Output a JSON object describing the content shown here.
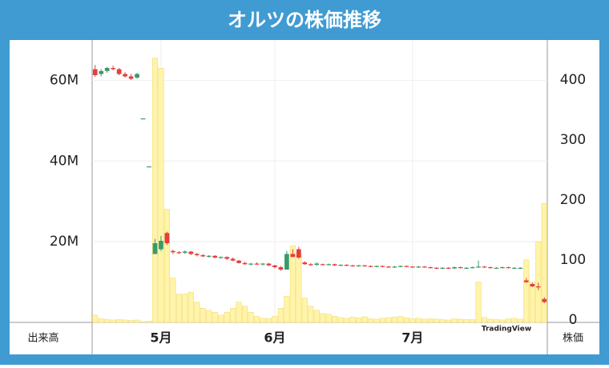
{
  "chart_data": {
    "type": "candlestick",
    "title": "オルツの株価推移",
    "y_label": "出来高",
    "y2_label": "株価",
    "watermark": "TradingView",
    "up_color": "#3a9a6a",
    "down_color": "#e0403f",
    "volume_color": "#fff4a8",
    "grid": true,
    "categories": [
      null,
      null,
      null,
      null,
      null,
      null,
      null,
      null,
      null,
      null,
      null,
      "5月",
      null,
      null,
      null,
      null,
      null,
      null,
      null,
      null,
      null,
      null,
      null,
      null,
      null,
      null,
      null,
      null,
      null,
      null,
      "6月",
      null,
      null,
      null,
      null,
      null,
      null,
      null,
      null,
      null,
      null,
      null,
      null,
      null,
      null,
      null,
      null,
      null,
      null,
      null,
      null,
      null,
      null,
      "7月",
      null,
      null,
      null,
      null,
      null,
      null,
      null,
      null,
      null,
      null,
      null,
      null,
      null,
      null,
      null,
      null,
      null,
      null,
      null,
      null,
      null,
      null
    ],
    "open": [
      418,
      410,
      415,
      420,
      418,
      410,
      406,
      404,
      336,
      256,
      110,
      118,
      145,
      115,
      113,
      112,
      114,
      110,
      108,
      106,
      107,
      104,
      105,
      102,
      99,
      95,
      93,
      94,
      93,
      94,
      91,
      88,
      84,
      110,
      118,
      96,
      93,
      92,
      93,
      92,
      93,
      91,
      92,
      91,
      90,
      91,
      90,
      89,
      90,
      89,
      88,
      89,
      90,
      89,
      88,
      89,
      88,
      87,
      86,
      87,
      86,
      88,
      87,
      87,
      88,
      89,
      88,
      87,
      87,
      88,
      87,
      87,
      66,
      60,
      56,
      35
    ],
    "high": [
      425,
      418,
      422,
      424,
      420,
      413,
      410,
      412,
      336,
      256,
      135,
      140,
      147,
      117,
      115,
      116,
      115,
      112,
      110,
      108,
      108,
      106,
      106,
      104,
      100,
      97,
      95,
      96,
      95,
      95,
      92,
      90,
      115,
      118,
      122,
      98,
      95,
      96,
      94,
      94,
      94,
      93,
      93,
      92,
      92,
      92,
      91,
      91,
      91,
      90,
      90,
      91,
      91,
      90,
      90,
      90,
      89,
      88,
      88,
      88,
      89,
      89,
      88,
      89,
      99,
      90,
      89,
      88,
      89,
      89,
      88,
      88,
      70,
      62,
      62,
      38
    ],
    "low": [
      405,
      406,
      412,
      416,
      408,
      404,
      400,
      402,
      336,
      256,
      110,
      115,
      125,
      110,
      110,
      110,
      108,
      106,
      105,
      104,
      103,
      102,
      100,
      98,
      94,
      92,
      91,
      92,
      91,
      90,
      86,
      82,
      84,
      105,
      102,
      92,
      90,
      90,
      91,
      91,
      90,
      90,
      90,
      89,
      89,
      89,
      88,
      88,
      88,
      87,
      87,
      88,
      88,
      87,
      87,
      87,
      86,
      85,
      85,
      85,
      85,
      86,
      86,
      86,
      87,
      87,
      86,
      86,
      86,
      86,
      86,
      86,
      62,
      55,
      50,
      28
    ],
    "close": [
      408,
      415,
      420,
      418,
      410,
      406,
      402,
      410,
      336,
      256,
      128,
      132,
      128,
      113,
      112,
      114,
      110,
      108,
      106,
      107,
      104,
      105,
      102,
      99,
      95,
      93,
      94,
      93,
      94,
      91,
      88,
      84,
      110,
      105,
      104,
      93,
      92,
      94,
      92,
      93,
      91,
      92,
      91,
      90,
      91,
      90,
      89,
      90,
      89,
      88,
      89,
      90,
      89,
      88,
      89,
      88,
      87,
      86,
      87,
      86,
      88,
      87,
      87,
      88,
      89,
      88,
      87,
      87,
      88,
      87,
      87,
      87,
      63,
      56,
      55,
      30
    ],
    "volume": [
      1800000,
      900000,
      700000,
      600000,
      700000,
      600000,
      500000,
      600000,
      200000,
      300000,
      65500000,
      63000000,
      28000000,
      11000000,
      7000000,
      7000000,
      7500000,
      5000000,
      3500000,
      3000000,
      2500000,
      1800000,
      2500000,
      3500000,
      5000000,
      4000000,
      2500000,
      1500000,
      1000000,
      1000000,
      1500000,
      3500000,
      6500000,
      19000000,
      17000000,
      6000000,
      4000000,
      3000000,
      2200000,
      2000000,
      1500000,
      1200000,
      1000000,
      1300000,
      1100000,
      1400000,
      900000,
      800000,
      1000000,
      1200000,
      1300000,
      1500000,
      1100000,
      900000,
      1000000,
      800000,
      900000,
      800000,
      700000,
      600000,
      900000,
      800000,
      700000,
      700000,
      10000000,
      1200000,
      800000,
      700000,
      600000,
      900000,
      1000000,
      800000,
      15500000,
      10000000,
      20000000,
      29500000
    ],
    "ylim": [
      0,
      69000000
    ],
    "yticks": [
      {
        "value": 20000000,
        "label": "20M"
      },
      {
        "value": 40000000,
        "label": "40M"
      },
      {
        "value": 60000000,
        "label": "60M"
      }
    ],
    "y2lim": [
      -4,
      460
    ],
    "y2ticks": [
      0,
      100,
      200,
      300,
      400
    ]
  }
}
